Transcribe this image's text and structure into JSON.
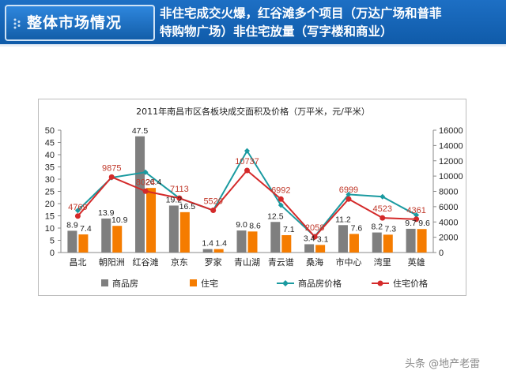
{
  "header": {
    "badge_title": "整体市场情况",
    "subtitle_line1": "非住宅成交火爆，红谷滩多个项目（万达广场和普菲",
    "subtitle_line2": "特购物广场）非住宅放量（写字楼和商业）"
  },
  "colors": {
    "header_bg": "#1562b4",
    "bar_commercial": "#7f7f7f",
    "bar_residential": "#f57c00",
    "line_commercial_price": "#1a9aa0",
    "line_residential_price": "#d42a2a",
    "label_residential_price": "#c0392b"
  },
  "chart_data": {
    "type": "bar",
    "title": "2011年南昌市区各板块成交面积及价格（万平米，元/平米）",
    "categories": [
      "昌北",
      "朝阳洲",
      "红谷滩",
      "京东",
      "罗家",
      "青山湖",
      "青云谱",
      "桑海",
      "市中心",
      "湾里",
      "英雄"
    ],
    "series": [
      {
        "name": "商品房",
        "type": "bar",
        "axis": "left",
        "values": [
          8.9,
          13.9,
          47.5,
          19.2,
          1.4,
          9.0,
          12.5,
          3.4,
          11.2,
          8.2,
          9.7
        ]
      },
      {
        "name": "住宅",
        "type": "bar",
        "axis": "left",
        "values": [
          7.4,
          10.9,
          26.4,
          16.5,
          1.4,
          8.6,
          7.1,
          3.1,
          7.6,
          7.3,
          9.6
        ]
      },
      {
        "name": "商品房价格",
        "type": "line",
        "axis": "right",
        "values": [
          5500,
          9800,
          10500,
          7100,
          5520,
          13300,
          6200,
          2100,
          7600,
          7300,
          4900
        ]
      },
      {
        "name": "住宅价格",
        "type": "line",
        "axis": "right",
        "values": [
          4769,
          9875,
          8024,
          7113,
          5520,
          10737,
          6992,
          2058,
          6999,
          4523,
          4361
        ]
      }
    ],
    "bar_labels": {
      "commercial": [
        "8.9",
        "13.9",
        "47.5",
        "19.2",
        "1.4",
        "9.0",
        "12.5",
        "3.4",
        "11.2",
        "8.2",
        "9.7"
      ],
      "residential": [
        "7.4",
        "10.9",
        "26.4",
        "16.5",
        "1.4",
        "8.6",
        "7.1",
        "3.1",
        "7.6",
        "7.3",
        "9.6"
      ]
    },
    "price_labels": [
      "4769",
      "9875",
      "8024",
      "7113",
      "5520",
      "10737",
      "6992",
      "2058",
      "6999",
      "4523",
      "4361"
    ],
    "y_left": {
      "min": 0,
      "max": 50,
      "ticks": [
        "0",
        "5",
        "10",
        "15",
        "20",
        "25",
        "30",
        "35",
        "40",
        "45",
        "50"
      ]
    },
    "y_right": {
      "min": 0,
      "max": 16000,
      "ticks": [
        "0",
        "2000",
        "4000",
        "6000",
        "8000",
        "10000",
        "12000",
        "14000",
        "16000"
      ]
    },
    "legend": {
      "position": "bottom",
      "items": [
        "商品房",
        "住宅",
        "商品房价格",
        "住宅价格"
      ]
    },
    "grid": false
  },
  "footer": {
    "watermark": "头条 @地产老雷"
  }
}
